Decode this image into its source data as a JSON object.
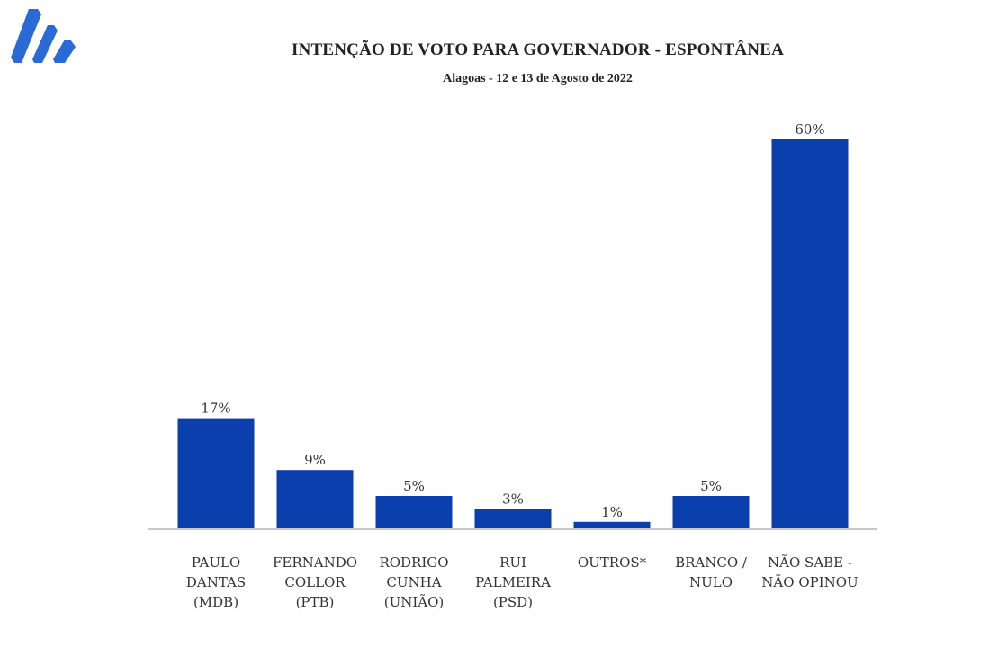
{
  "chart_data": {
    "type": "bar",
    "title": "INTENÇÃO DE VOTO PARA GOVERNADOR - ESPONTÂNEA",
    "subtitle": "Alagoas - 12 e 13 de Agosto de 2022",
    "categories": [
      [
        "PAULO",
        "DANTAS",
        "(MDB)"
      ],
      [
        "FERNANDO",
        "COLLOR",
        "(PTB)"
      ],
      [
        "RODRIGO",
        "CUNHA",
        "(UNIÃO)"
      ],
      [
        "RUI",
        "PALMEIRA",
        "(PSD)"
      ],
      [
        "OUTROS*"
      ],
      [
        "BRANCO /",
        "NULO"
      ],
      [
        "NÃO SABE  -",
        "NÃO OPINOU"
      ]
    ],
    "values": [
      17,
      9,
      5,
      3,
      1,
      5,
      60
    ],
    "data_labels": [
      "17%",
      "9%",
      "5%",
      "3%",
      "1%",
      "5%",
      "60%"
    ],
    "unit": "%",
    "ylim": [
      0,
      60
    ],
    "grid": false,
    "bar_color": "#0b3fae",
    "axis_color": "#c8c8c8"
  },
  "logo": {
    "color": "#2a6ad6"
  }
}
